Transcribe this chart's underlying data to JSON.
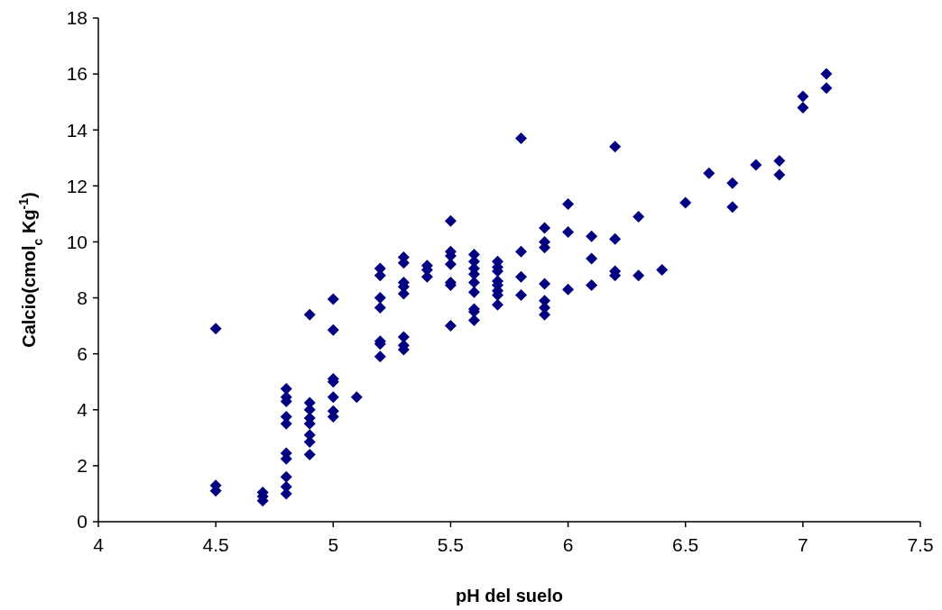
{
  "chart_data": {
    "type": "scatter",
    "xlabel": "pH del suelo",
    "ylabel": "Calcio(cmol$_{c}$ Kg$^{-1}$)",
    "xlim": [
      4,
      7.5
    ],
    "xticks": [
      4,
      4.5,
      5,
      5.5,
      6,
      6.5,
      7,
      7.5
    ],
    "ylim": [
      0,
      18
    ],
    "yticks": [
      0,
      2,
      4,
      6,
      8,
      10,
      12,
      14,
      16,
      18
    ],
    "marker": "diamond",
    "series": [
      {
        "color": "#000080",
        "x": [
          4.5,
          4.5,
          4.5,
          4.7,
          4.7,
          4.7,
          4.8,
          4.8,
          4.8,
          4.8,
          4.8,
          4.8,
          4.8,
          4.8,
          4.8,
          4.8,
          4.9,
          4.9,
          4.9,
          4.9,
          4.9,
          4.9,
          4.9,
          4.9,
          5.0,
          5.0,
          5.0,
          5.0,
          5.0,
          5.0,
          5.0,
          5.1,
          5.2,
          5.2,
          5.2,
          5.2,
          5.2,
          5.2,
          5.2,
          5.3,
          5.3,
          5.3,
          5.3,
          5.3,
          5.3,
          5.3,
          5.3,
          5.4,
          5.4,
          5.4,
          5.5,
          5.5,
          5.5,
          5.5,
          5.5,
          5.5,
          5.5,
          5.6,
          5.6,
          5.6,
          5.6,
          5.6,
          5.6,
          5.6,
          5.6,
          5.6,
          5.7,
          5.7,
          5.7,
          5.7,
          5.7,
          5.7,
          5.7,
          5.7,
          5.8,
          5.8,
          5.8,
          5.8,
          5.9,
          5.9,
          5.9,
          5.9,
          5.9,
          5.9,
          5.9,
          6.0,
          6.0,
          6.0,
          6.1,
          6.1,
          6.1,
          6.2,
          6.2,
          6.2,
          6.2,
          6.3,
          6.3,
          6.4,
          6.5,
          6.6,
          6.7,
          6.7,
          6.8,
          6.9,
          6.9,
          7.0,
          7.0,
          7.1,
          7.1
        ],
        "values": [
          6.9,
          1.3,
          1.1,
          1.05,
          0.9,
          0.75,
          4.75,
          4.45,
          4.3,
          3.75,
          3.5,
          2.45,
          2.25,
          1.6,
          1.25,
          1.0,
          7.4,
          4.25,
          4.0,
          3.7,
          3.5,
          3.1,
          2.85,
          2.4,
          7.95,
          6.85,
          5.1,
          5.0,
          4.45,
          3.95,
          3.75,
          4.45,
          9.05,
          8.8,
          8.0,
          7.65,
          6.45,
          6.35,
          5.9,
          9.45,
          9.25,
          8.55,
          8.4,
          8.15,
          6.6,
          6.3,
          6.15,
          9.15,
          9.0,
          8.75,
          10.75,
          9.65,
          9.5,
          9.2,
          8.55,
          8.45,
          7.0,
          9.55,
          9.3,
          9.05,
          8.85,
          8.55,
          8.2,
          7.6,
          7.5,
          7.2,
          9.3,
          9.1,
          8.95,
          8.6,
          8.45,
          8.25,
          8.1,
          7.75,
          13.7,
          9.65,
          8.75,
          8.1,
          10.5,
          10.0,
          9.8,
          8.5,
          7.9,
          7.65,
          7.4,
          11.35,
          10.35,
          8.3,
          10.2,
          9.4,
          8.45,
          13.4,
          10.1,
          8.95,
          8.8,
          10.9,
          8.8,
          9.0,
          11.4,
          12.45,
          12.1,
          11.25,
          12.75,
          12.9,
          12.4,
          15.2,
          14.8,
          16.0,
          15.5
        ]
      }
    ]
  }
}
